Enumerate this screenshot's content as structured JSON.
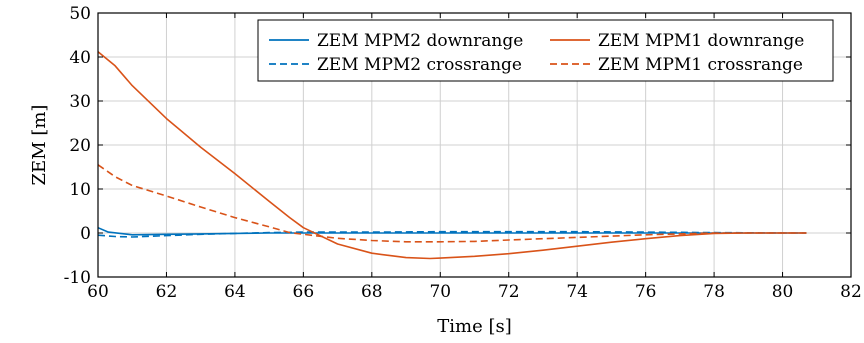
{
  "chart_data": {
    "type": "line",
    "title": "",
    "xlabel": "Time [s]",
    "ylabel": "ZEM [m]",
    "xlim": [
      60,
      82
    ],
    "ylim": [
      -10,
      50
    ],
    "xticks": [
      60,
      62,
      64,
      66,
      68,
      70,
      72,
      74,
      76,
      78,
      80,
      82
    ],
    "yticks": [
      -10,
      0,
      10,
      20,
      30,
      40,
      50
    ],
    "grid": true,
    "legend_position": "top-right",
    "series": [
      {
        "name": "ZEM MPM2 downrange",
        "color": "#0072bd",
        "dash": "solid",
        "x": [
          60,
          60.3,
          61,
          62,
          63,
          64,
          65,
          66,
          68,
          70,
          72,
          74,
          76,
          78,
          80,
          80.7
        ],
        "y": [
          1.2,
          0.2,
          -0.4,
          -0.3,
          -0.2,
          -0.1,
          0,
          0,
          0,
          0,
          0,
          0,
          0,
          0,
          0,
          0
        ]
      },
      {
        "name": "ZEM MPM2 crossrange",
        "color": "#0072bd",
        "dash": "dashed",
        "x": [
          60,
          60.5,
          61,
          62,
          63,
          64,
          65,
          66,
          68,
          70,
          72,
          74,
          76,
          78,
          80,
          80.7
        ],
        "y": [
          -0.5,
          -0.8,
          -0.9,
          -0.6,
          -0.3,
          -0.1,
          0.1,
          0.2,
          0.2,
          0.3,
          0.3,
          0.3,
          0.2,
          0.1,
          0,
          0
        ]
      },
      {
        "name": "ZEM MPM1 downrange",
        "color": "#d95319",
        "dash": "solid",
        "x": [
          60,
          60.5,
          61,
          62,
          63,
          64,
          65,
          65.6,
          66,
          67,
          68,
          69,
          69.7,
          70,
          71,
          72,
          73,
          74,
          75,
          76,
          77,
          78,
          79,
          80,
          80.7
        ],
        "y": [
          41.2,
          38,
          33.5,
          26,
          19.5,
          13.5,
          7.2,
          3.5,
          1.2,
          -2.5,
          -4.6,
          -5.6,
          -5.8,
          -5.7,
          -5.3,
          -4.7,
          -3.9,
          -3.0,
          -2.1,
          -1.3,
          -0.6,
          -0.1,
          0,
          0,
          0
        ]
      },
      {
        "name": "ZEM MPM1 crossrange",
        "color": "#d95319",
        "dash": "dashed",
        "x": [
          60,
          60.5,
          61,
          62,
          63,
          64,
          65,
          65.6,
          66,
          67,
          68,
          69,
          70,
          71,
          72,
          73,
          74,
          75,
          76,
          77,
          78,
          79,
          80,
          80.7
        ],
        "y": [
          15.5,
          12.8,
          10.8,
          8.4,
          5.9,
          3.5,
          1.4,
          0.1,
          -0.3,
          -1.2,
          -1.7,
          -2.0,
          -2.0,
          -1.9,
          -1.6,
          -1.3,
          -1.0,
          -0.7,
          -0.4,
          -0.2,
          0,
          0,
          0,
          0
        ]
      }
    ]
  }
}
